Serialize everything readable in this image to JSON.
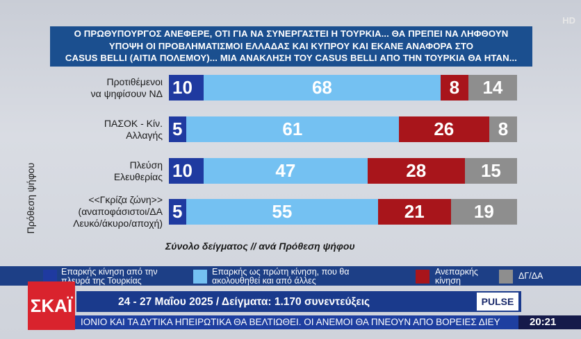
{
  "badge": {
    "hd": "HD"
  },
  "title": {
    "line1": "Ο ΠΡΩΘΥΠΟΥΡΓΟΣ ΑΝΕΦΕΡΕ, ΟΤΙ ΓΙΑ ΝΑ ΣΥΝΕΡΓΑΣΤΕΙ Η ΤΟΥΡΚΙΑ... ΘΑ ΠΡΕΠΕΙ ΝΑ ΛΗΦΘΟΥΝ",
    "line2": "ΥΠΟΨΗ ΟΙ ΠΡΟΒΛΗΜΑΤΙΣΜΟΙ ΕΛΛΑΔΑΣ ΚΑΙ ΚΥΠΡΟΥ ΚΑΙ ΕΚΑΝΕ ΑΝΑΦΟΡΑ ΣΤΟ",
    "line3": "CASUS BELLI (ΑΙΤΙΑ ΠΟΛΕΜΟΥ)... ΜΙΑ ΑΝΑΚΛΗΣΗ ΤΟΥ CASUS BELLI ΑΠΟ ΤΗΝ ΤΟΥΡΚΙΑ ΘΑ ΗΤΑΝ..."
  },
  "chart_data": {
    "type": "bar",
    "orientation": "horizontal",
    "stacked": true,
    "ylabel": "Πρόθεση ψήφου",
    "xlabel": "Σύνολο δείγματος // ανά Πρόθεση ψήφου",
    "categories": [
      [
        "Προτιθέμενοι",
        "να ψηφίσουν ΝΔ"
      ],
      [
        "ΠΑΣΟΚ - Κίν.",
        "Αλλαγής"
      ],
      [
        "Πλεύση",
        "Ελευθερίας"
      ],
      [
        "<<Γκρίζα ζώνη>>",
        "(αναποφάσιστοι/ΔΑ",
        "Λευκό/άκυρο/αποχή)"
      ]
    ],
    "series": [
      {
        "name": "Επαρκής κίνηση από την πλευρά της Τουρκίας",
        "color": "#1f3aa0",
        "values": [
          10,
          5,
          10,
          5
        ]
      },
      {
        "name": "Επαρκής ως πρώτη κίνηση, που θα ακολουθηθεί και από άλλες",
        "color": "#74c1f2",
        "values": [
          68,
          61,
          47,
          55
        ]
      },
      {
        "name": "Ανεπαρκής κίνηση",
        "color": "#a8151b",
        "values": [
          8,
          26,
          28,
          21
        ]
      },
      {
        "name": "ΔΓ/ΔΑ",
        "color": "#8e8e8e",
        "values": [
          14,
          8,
          15,
          19
        ]
      }
    ],
    "xlim": [
      0,
      100
    ],
    "legend": "bottom"
  },
  "legend": {
    "items": [
      {
        "line1": "Επαρκής κίνηση από την",
        "line2": "πλευρά της Τουρκίας"
      },
      {
        "line1": "Επαρκής ως πρώτη κίνηση, που θα",
        "line2": "ακολουθηθεί και από άλλες"
      },
      {
        "line1": "Ανεπαρκής",
        "line2": "κίνηση"
      },
      {
        "line1": "ΔΓ/ΔΑ",
        "line2": ""
      }
    ]
  },
  "footer": {
    "logo": "ΣΚΑΪ",
    "date_line": "24 - 27 Μαΐου 2025 / Δείγματα: 1.170 συνεντεύξεις",
    "pollster": "PULSE",
    "ticker": "ΙΟΝΙΟ ΚΑΙ ΤΑ ΔΥΤΙΚΑ ΗΠΕΙΡΩΤΙΚΑ ΘΑ ΒΕΛΤΙΩΘΕΙ. ΟΙ ΑΝΕΜΟΙ ΘΑ ΠΝΕΟΥΝ ΑΠΟ ΒΟΡΕΙΕΣ ΔΙΕΥ",
    "clock": "20:21"
  }
}
